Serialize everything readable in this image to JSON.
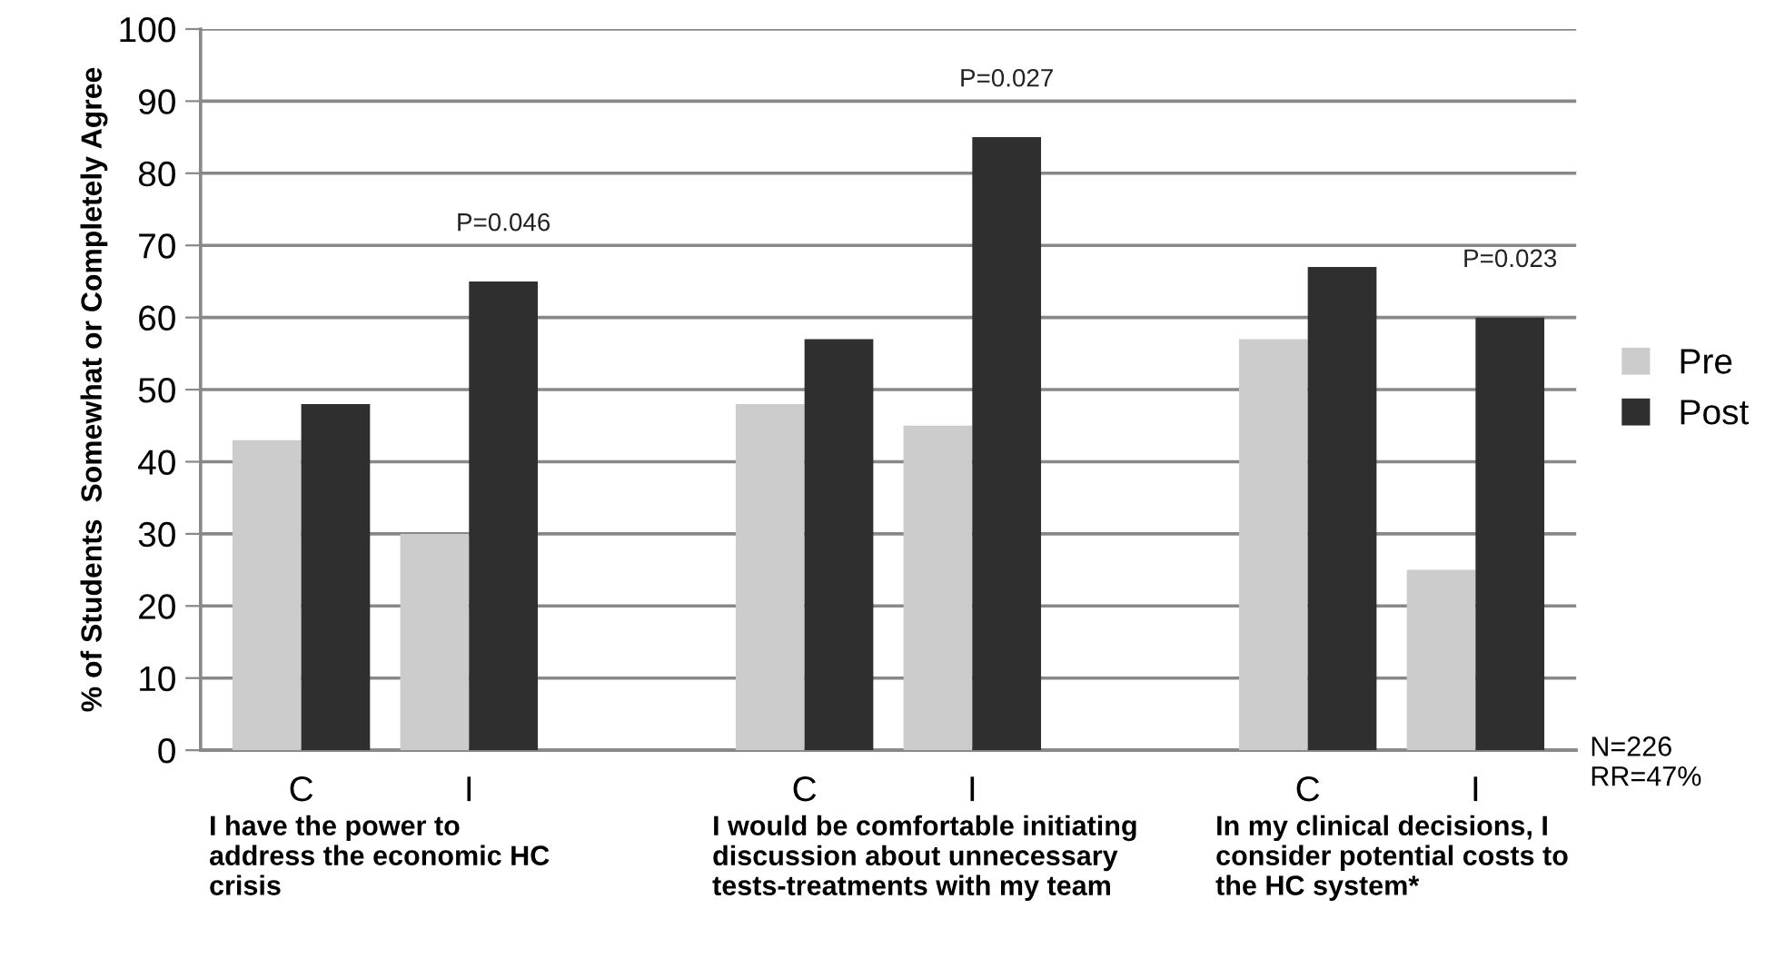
{
  "chart_data": {
    "type": "bar",
    "ylabel": "% of Students  Somewhat or Completely Agree",
    "categories": [
      "C",
      "I",
      null,
      "C",
      "I",
      null,
      "C",
      "I"
    ],
    "series": [
      {
        "name": "Pre",
        "color": "#cccccc",
        "values": [
          43,
          30,
          null,
          48,
          45,
          null,
          57,
          25
        ]
      },
      {
        "name": "Post",
        "color": "#2f2f2f",
        "values": [
          48,
          65,
          null,
          57,
          85,
          null,
          67,
          60
        ]
      }
    ],
    "ylim": [
      0,
      100
    ],
    "yticks": [
      0,
      10,
      20,
      30,
      40,
      50,
      60,
      70,
      80,
      90,
      100
    ],
    "grid": "y",
    "legend": "right",
    "annotations": [
      {
        "text": "P=0.046",
        "y": 65
      },
      {
        "text": "P=0.027",
        "y": 85
      },
      {
        "text": "P=0.023",
        "y": 60
      },
      "I have the power to\naddress the economic HC\ncrisis",
      "I would be comfortable initiating\ndiscussion about unnecessary\ntests-treatments with my team",
      "In my clinical decisions, I\nconsider potential costs to\nthe HC system*",
      "N=226\nRR=47%"
    ]
  }
}
